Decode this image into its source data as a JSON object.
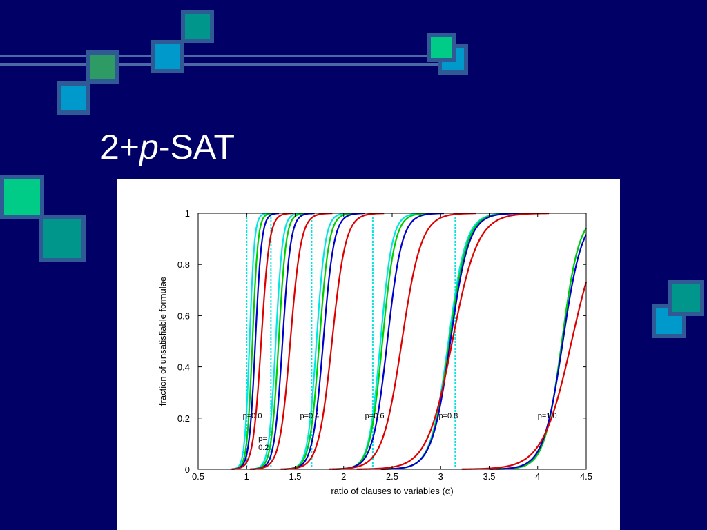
{
  "slide": {
    "title_prefix": "2+",
    "title_italic": "p",
    "title_suffix": "-SAT"
  },
  "colors": {
    "background": "#000066",
    "square_teal": "#00968c",
    "square_green": "#00cc88",
    "square_blue": "#0099cc",
    "square_olive": "#2e9a64",
    "square_border": "#2f5a96",
    "line": "#4a6aa6"
  },
  "chart_data": {
    "type": "line",
    "xlabel": "ratio of clauses to variables (α)",
    "ylabel": "fraction of unsatisfiable formulae",
    "xlim": [
      0.5,
      4.5
    ],
    "ylim": [
      0,
      1
    ],
    "xticks": [
      "0.5",
      "1",
      "1.5",
      "2",
      "2.5",
      "3",
      "3.5",
      "4",
      "4.5"
    ],
    "yticks": [
      "0",
      "0.2",
      "0.4",
      "0.6",
      "0.8",
      "1"
    ],
    "grid": false,
    "series_colors": [
      "#00e5e5",
      "#00cc00",
      "#0000cc",
      "#dd0000"
    ],
    "threshold_lines": [
      1.0,
      1.25,
      1.67,
      2.3,
      3.15
    ],
    "groups": [
      {
        "label": "p=0.0",
        "label_x": 0.96,
        "label_y": 0.2,
        "midpoints": [
          1.03,
          1.06,
          1.09,
          1.15
        ],
        "widths": [
          0.025,
          0.028,
          0.032,
          0.042
        ]
      },
      {
        "label": "p=\n0.2",
        "label_x": 1.12,
        "label_y": 0.11,
        "midpoints": [
          1.3,
          1.33,
          1.37,
          1.45
        ],
        "widths": [
          0.035,
          0.038,
          0.042,
          0.055
        ]
      },
      {
        "label": "p=0.4",
        "label_x": 1.55,
        "label_y": 0.2,
        "midpoints": [
          1.72,
          1.75,
          1.79,
          1.88
        ],
        "widths": [
          0.045,
          0.05,
          0.055,
          0.07
        ]
      },
      {
        "label": "p=0.6",
        "label_x": 2.22,
        "label_y": 0.2,
        "midpoints": [
          2.38,
          2.4,
          2.45,
          2.6
        ],
        "widths": [
          0.06,
          0.065,
          0.075,
          0.1
        ]
      },
      {
        "label": "p=0.8",
        "label_x": 2.98,
        "label_y": 0.2,
        "midpoints": [
          3.08,
          3.09,
          3.1,
          3.12
        ],
        "widths": [
          0.09,
          0.092,
          0.095,
          0.13
        ]
      },
      {
        "label": "p=1.0",
        "label_x": 4.0,
        "label_y": 0.2,
        "midpoints": [
          4.25,
          4.25,
          4.26,
          4.35
        ],
        "widths": [
          0.09,
          0.09,
          0.1,
          0.15
        ]
      }
    ]
  }
}
